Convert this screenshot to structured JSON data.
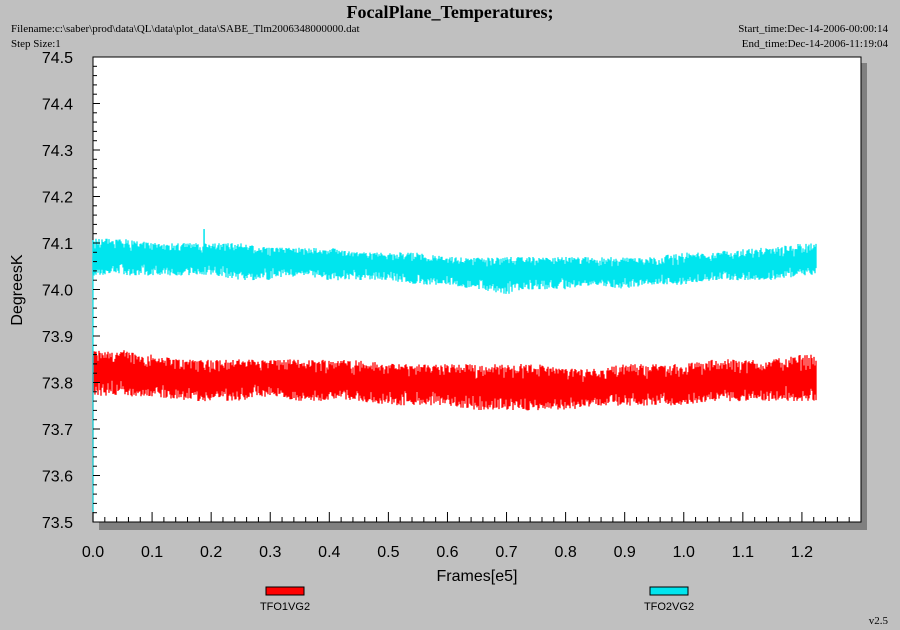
{
  "header": {
    "title": "FocalPlane_Temperatures;",
    "filename": "Filename:c:\\saber\\prod\\data\\QL\\data\\plot_data\\SABE_Tlm2006348000000.dat",
    "step_size": "Step Size:1",
    "start_time": "Start_time:Dec-14-2006-00:00:14",
    "end_time": "End_time:Dec-14-2006-11:19:04"
  },
  "footer": {
    "version": "v2.5"
  },
  "colors": {
    "background": "#c0c0c0",
    "plot_area": "#ffffff",
    "shadow": "#808080",
    "tfo1": "#ff0000",
    "tfo2": "#00e5ee"
  },
  "chart_data": {
    "type": "line",
    "title": "FocalPlane_Temperatures;",
    "xlabel": "Frames[e5]",
    "ylabel": "DegreesK",
    "xlim": [
      0,
      1.3
    ],
    "ylim": [
      73.5,
      74.5
    ],
    "x_ticks": [
      "0.0",
      "0.1",
      "0.2",
      "0.3",
      "0.4",
      "0.5",
      "0.6",
      "0.7",
      "0.8",
      "0.9",
      "1.0",
      "1.1",
      "1.2"
    ],
    "y_ticks": [
      "73.5",
      "73.6",
      "73.7",
      "73.8",
      "73.9",
      "74.0",
      "74.1",
      "74.2",
      "74.3",
      "74.4",
      "74.5"
    ],
    "grid": false,
    "legend_position": "bottom",
    "series": [
      {
        "name": "TFO1VG2",
        "color": "#ff0000",
        "x": [
          0.0,
          0.05,
          0.1,
          0.15,
          0.2,
          0.25,
          0.3,
          0.35,
          0.4,
          0.45,
          0.5,
          0.55,
          0.6,
          0.65,
          0.7,
          0.75,
          0.8,
          0.85,
          0.9,
          0.95,
          1.0,
          1.05,
          1.1,
          1.15,
          1.2,
          1.225
        ],
        "values": [
          73.82,
          73.82,
          73.81,
          73.81,
          73.81,
          73.81,
          73.81,
          73.8,
          73.81,
          73.8,
          73.8,
          73.8,
          73.79,
          73.79,
          73.79,
          73.79,
          73.79,
          73.79,
          73.79,
          73.79,
          73.79,
          73.8,
          73.8,
          73.8,
          73.81,
          73.81
        ],
        "band_low": [
          73.77,
          73.77,
          73.77,
          73.76,
          73.76,
          73.76,
          73.77,
          73.76,
          73.76,
          73.76,
          73.75,
          73.75,
          73.75,
          73.74,
          73.74,
          73.74,
          73.74,
          73.75,
          73.75,
          73.75,
          73.75,
          73.76,
          73.76,
          73.76,
          73.76,
          73.76
        ],
        "band_high": [
          73.87,
          73.87,
          73.86,
          73.85,
          73.85,
          73.85,
          73.85,
          73.85,
          73.85,
          73.85,
          73.84,
          73.84,
          73.84,
          73.84,
          73.84,
          73.84,
          73.83,
          73.83,
          73.84,
          73.84,
          73.84,
          73.85,
          73.85,
          73.85,
          73.86,
          73.86
        ]
      },
      {
        "name": "TFO2VG2",
        "color": "#00e5ee",
        "x": [
          0.0,
          0.05,
          0.1,
          0.15,
          0.2,
          0.25,
          0.3,
          0.35,
          0.4,
          0.45,
          0.5,
          0.55,
          0.6,
          0.65,
          0.7,
          0.75,
          0.8,
          0.85,
          0.9,
          0.95,
          1.0,
          1.05,
          1.1,
          1.15,
          1.2,
          1.225
        ],
        "values": [
          74.07,
          74.07,
          74.07,
          74.06,
          74.06,
          74.06,
          74.06,
          74.06,
          74.06,
          74.06,
          74.05,
          74.05,
          74.04,
          74.04,
          74.04,
          74.04,
          74.04,
          74.04,
          74.04,
          74.04,
          74.04,
          74.05,
          74.05,
          74.05,
          74.06,
          74.06
        ],
        "band_low": [
          74.03,
          74.03,
          74.03,
          74.03,
          74.03,
          74.02,
          74.02,
          74.03,
          74.02,
          74.02,
          74.02,
          74.01,
          74.01,
          74.0,
          73.99,
          74.0,
          74.0,
          74.01,
          74.0,
          74.01,
          74.01,
          74.02,
          74.02,
          74.02,
          74.03,
          74.03
        ],
        "band_high": [
          74.11,
          74.11,
          74.1,
          74.1,
          74.1,
          74.1,
          74.09,
          74.09,
          74.09,
          74.08,
          74.08,
          74.08,
          74.07,
          74.07,
          74.07,
          74.07,
          74.07,
          74.07,
          74.07,
          74.07,
          74.08,
          74.08,
          74.09,
          74.09,
          74.1,
          74.1
        ],
        "spike": {
          "x": 0.188,
          "value": 74.13
        }
      }
    ]
  }
}
